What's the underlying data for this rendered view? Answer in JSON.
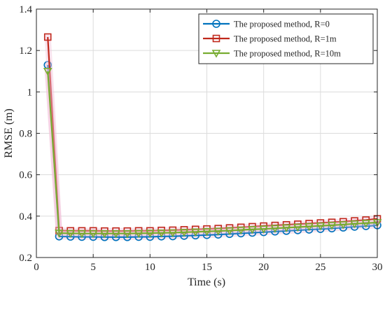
{
  "chart_data": {
    "type": "line",
    "title": "",
    "xlabel": "Time (s)",
    "ylabel": "RMSE (m)",
    "xlim": [
      0,
      30
    ],
    "ylim": [
      0.2,
      1.4
    ],
    "xticks": [
      0,
      5,
      10,
      15,
      20,
      25,
      30
    ],
    "yticks": [
      0.2,
      0.4,
      0.6,
      0.8,
      1,
      1.2,
      1.4
    ],
    "xtick_labels": [
      "0",
      "5",
      "10",
      "15",
      "20",
      "25",
      "30"
    ],
    "ytick_labels": [
      "0.2",
      "0.4",
      "0.6",
      "0.8",
      "1",
      "1.2",
      "1.4"
    ],
    "grid": true,
    "legend_position": "top-right",
    "x": [
      1,
      2,
      3,
      4,
      5,
      6,
      7,
      8,
      9,
      10,
      11,
      12,
      13,
      14,
      15,
      16,
      17,
      18,
      19,
      20,
      21,
      22,
      23,
      24,
      25,
      26,
      27,
      28,
      29,
      30
    ],
    "series": [
      {
        "name": "The proposed method, R=0",
        "color": "#0072BD",
        "marker": "circle",
        "values": [
          1.13,
          0.302,
          0.301,
          0.3,
          0.3,
          0.299,
          0.299,
          0.299,
          0.3,
          0.3,
          0.302,
          0.303,
          0.305,
          0.307,
          0.309,
          0.311,
          0.314,
          0.317,
          0.32,
          0.323,
          0.326,
          0.329,
          0.332,
          0.335,
          0.338,
          0.341,
          0.345,
          0.349,
          0.352,
          0.356
        ]
      },
      {
        "name": "The proposed method, R=1m",
        "color": "#C0281C",
        "marker": "square",
        "values": [
          1.265,
          0.33,
          0.329,
          0.329,
          0.329,
          0.328,
          0.328,
          0.328,
          0.329,
          0.329,
          0.331,
          0.332,
          0.334,
          0.336,
          0.338,
          0.34,
          0.343,
          0.346,
          0.349,
          0.352,
          0.355,
          0.358,
          0.361,
          0.364,
          0.367,
          0.37,
          0.373,
          0.377,
          0.381,
          0.387
        ]
      },
      {
        "name": "The proposed method, R=10m",
        "color": "#77AC30",
        "marker": "triangle-down",
        "values": [
          1.1,
          0.318,
          0.317,
          0.316,
          0.316,
          0.316,
          0.316,
          0.316,
          0.317,
          0.318,
          0.319,
          0.32,
          0.322,
          0.324,
          0.326,
          0.328,
          0.33,
          0.333,
          0.336,
          0.338,
          0.341,
          0.344,
          0.347,
          0.35,
          0.353,
          0.356,
          0.359,
          0.363,
          0.366,
          0.369
        ]
      }
    ]
  }
}
